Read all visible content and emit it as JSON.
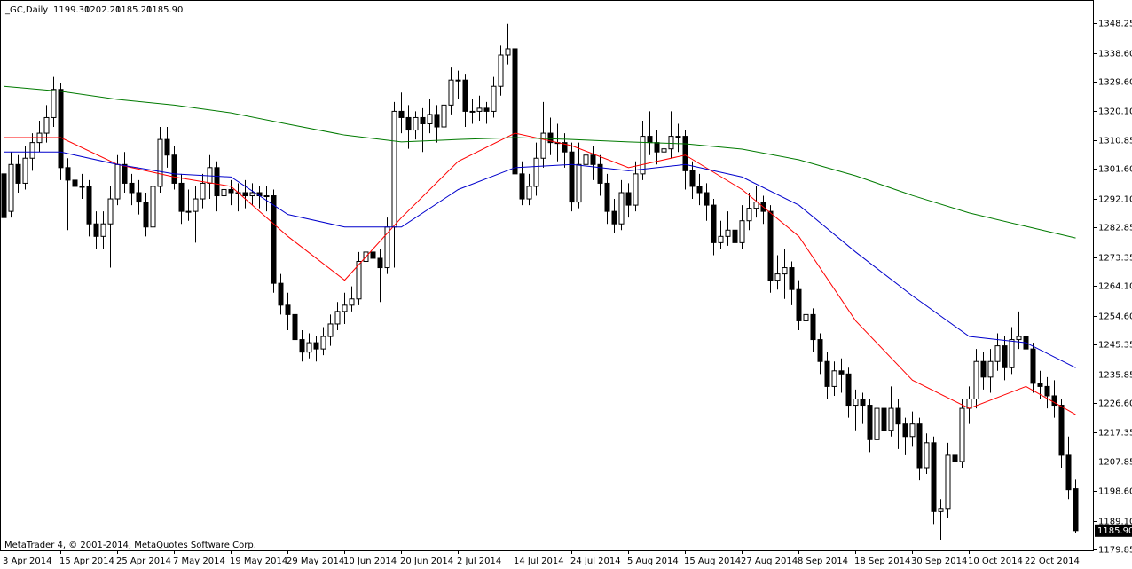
{
  "chart_data": {
    "type": "candlestick",
    "symbol": "_GC,Daily",
    "header_ohlc": [
      "1199.30",
      "1202.20",
      "1185.20",
      "1185.90"
    ],
    "copyright": "MetaTrader 4, © 2001-2014, MetaQuotes Software Corp.",
    "last_price": {
      "value": 1185.9,
      "label": "1185.90"
    },
    "ylim": [
      1179.6,
      1355.6
    ],
    "yticks": [
      {
        "value": 1348.25,
        "label": "1348.25"
      },
      {
        "value": 1338.6,
        "label": "1338.60"
      },
      {
        "value": 1329.6,
        "label": "1329.60"
      },
      {
        "value": 1320.1,
        "label": "1320.10"
      },
      {
        "value": 1310.85,
        "label": "1310.85"
      },
      {
        "value": 1301.6,
        "label": "1301.60"
      },
      {
        "value": 1292.1,
        "label": "1292.10"
      },
      {
        "value": 1282.85,
        "label": "1282.85"
      },
      {
        "value": 1273.35,
        "label": "1273.35"
      },
      {
        "value": 1264.1,
        "label": "1264.10"
      },
      {
        "value": 1254.6,
        "label": "1254.60"
      },
      {
        "value": 1245.35,
        "label": "1245.35"
      },
      {
        "value": 1235.85,
        "label": "1235.85"
      },
      {
        "value": 1226.6,
        "label": "1226.60"
      },
      {
        "value": 1217.35,
        "label": "1217.35"
      },
      {
        "value": 1207.85,
        "label": "1207.85"
      },
      {
        "value": 1198.6,
        "label": "1198.60"
      },
      {
        "value": 1189.1,
        "label": "1189.10"
      },
      {
        "value": 1179.85,
        "label": "1179.85"
      }
    ],
    "categories": [
      "3 Apr 2014",
      null,
      null,
      null,
      null,
      null,
      null,
      null,
      "15 Apr 2014",
      null,
      null,
      null,
      null,
      null,
      null,
      null,
      "25 Apr 2014",
      null,
      null,
      null,
      null,
      null,
      null,
      null,
      "7 May 2014",
      null,
      null,
      null,
      null,
      null,
      null,
      null,
      "19 May 2014",
      null,
      null,
      null,
      null,
      null,
      null,
      null,
      "29 May 2014",
      null,
      null,
      null,
      null,
      null,
      null,
      null,
      "10 Jun 2014",
      null,
      null,
      null,
      null,
      null,
      null,
      null,
      "20 Jun 2014",
      null,
      null,
      null,
      null,
      null,
      null,
      null,
      "2 Jul 2014",
      null,
      null,
      null,
      null,
      null,
      null,
      null,
      "14 Jul 2014",
      null,
      null,
      null,
      null,
      null,
      null,
      null,
      "24 Jul 2014",
      null,
      null,
      null,
      null,
      null,
      null,
      null,
      "5 Aug 2014",
      null,
      null,
      null,
      null,
      null,
      null,
      null,
      "15 Aug 2014",
      null,
      null,
      null,
      null,
      null,
      null,
      null,
      "27 Aug 2014",
      null,
      null,
      null,
      null,
      null,
      null,
      null,
      "8 Sep 2014",
      null,
      null,
      null,
      null,
      null,
      null,
      null,
      "18 Sep 2014",
      null,
      null,
      null,
      null,
      null,
      null,
      null,
      "30 Sep 2014",
      null,
      null,
      null,
      null,
      null,
      null,
      null,
      "10 Oct 2014",
      null,
      null,
      null,
      null,
      null,
      null,
      null,
      "22 Oct 2014",
      null,
      null,
      null,
      null,
      null,
      null,
      null
    ],
    "ohlc": [
      [
        1300,
        1303,
        1282,
        1286
      ],
      [
        1288,
        1307,
        1286,
        1303
      ],
      [
        1303,
        1306,
        1294,
        1297
      ],
      [
        1297,
        1309,
        1295,
        1305
      ],
      [
        1305,
        1313,
        1301,
        1310
      ],
      [
        1310,
        1317,
        1307,
        1313
      ],
      [
        1313,
        1322,
        1310,
        1318
      ],
      [
        1318,
        1331,
        1315,
        1327
      ],
      [
        1327,
        1329,
        1298,
        1302
      ],
      [
        1302,
        1305,
        1282,
        1298
      ],
      [
        1298,
        1300,
        1290,
        1296
      ],
      [
        1296,
        1300,
        1292,
        1296
      ],
      [
        1296,
        1298,
        1280,
        1284
      ],
      [
        1284,
        1288,
        1276,
        1280
      ],
      [
        1280,
        1288,
        1276,
        1284
      ],
      [
        1284,
        1296,
        1270,
        1292
      ],
      [
        1292,
        1306,
        1290,
        1303
      ],
      [
        1303,
        1307,
        1294,
        1297
      ],
      [
        1297,
        1300,
        1290,
        1294
      ],
      [
        1294,
        1298,
        1287,
        1291
      ],
      [
        1291,
        1294,
        1280,
        1283
      ],
      [
        1283,
        1300,
        1271,
        1296
      ],
      [
        1296,
        1315,
        1294,
        1311
      ],
      [
        1311,
        1315,
        1302,
        1306
      ],
      [
        1306,
        1309,
        1295,
        1297
      ],
      [
        1297,
        1300,
        1284,
        1288
      ],
      [
        1288,
        1295,
        1285,
        1288
      ],
      [
        1288,
        1296,
        1278,
        1292
      ],
      [
        1292,
        1300,
        1289,
        1297
      ],
      [
        1297,
        1306,
        1292,
        1302
      ],
      [
        1302,
        1304,
        1288,
        1293
      ],
      [
        1293,
        1300,
        1290,
        1295
      ],
      [
        1295,
        1298,
        1290,
        1294
      ],
      [
        1294,
        1297,
        1288,
        1294
      ],
      [
        1294,
        1298,
        1289,
        1293
      ],
      [
        1293,
        1297,
        1290,
        1294
      ],
      [
        1294,
        1296,
        1289,
        1293
      ],
      [
        1293,
        1296,
        1288,
        1293
      ],
      [
        1293,
        1295,
        1262,
        1265
      ],
      [
        1265,
        1268,
        1255,
        1258
      ],
      [
        1258,
        1262,
        1250,
        1255
      ],
      [
        1255,
        1257,
        1243,
        1247
      ],
      [
        1247,
        1250,
        1240,
        1243
      ],
      [
        1243,
        1249,
        1241,
        1246
      ],
      [
        1246,
        1248,
        1240,
        1244
      ],
      [
        1244,
        1251,
        1242,
        1248
      ],
      [
        1248,
        1255,
        1245,
        1252
      ],
      [
        1252,
        1259,
        1250,
        1256
      ],
      [
        1256,
        1262,
        1252,
        1258
      ],
      [
        1258,
        1264,
        1256,
        1260
      ],
      [
        1260,
        1275,
        1258,
        1272
      ],
      [
        1272,
        1278,
        1268,
        1275
      ],
      [
        1275,
        1277,
        1268,
        1273
      ],
      [
        1273,
        1276,
        1259,
        1270
      ],
      [
        1270,
        1286,
        1268,
        1283
      ],
      [
        1283,
        1323,
        1270,
        1320
      ],
      [
        1320,
        1326,
        1313,
        1318
      ],
      [
        1318,
        1322,
        1308,
        1314
      ],
      [
        1314,
        1320,
        1311,
        1318
      ],
      [
        1318,
        1321,
        1307,
        1316
      ],
      [
        1316,
        1324,
        1313,
        1319
      ],
      [
        1319,
        1322,
        1310,
        1315
      ],
      [
        1315,
        1326,
        1312,
        1322
      ],
      [
        1322,
        1334,
        1319,
        1330
      ],
      [
        1330,
        1333,
        1324,
        1330
      ],
      [
        1330,
        1332,
        1315,
        1320
      ],
      [
        1320,
        1324,
        1316,
        1320
      ],
      [
        1320,
        1325,
        1317,
        1321
      ],
      [
        1321,
        1323,
        1316,
        1320
      ],
      [
        1320,
        1331,
        1318,
        1328
      ],
      [
        1328,
        1341,
        1325,
        1338
      ],
      [
        1338,
        1348,
        1335,
        1340
      ],
      [
        1340,
        1342,
        1295,
        1300
      ],
      [
        1300,
        1304,
        1290,
        1292
      ],
      [
        1292,
        1300,
        1290,
        1296
      ],
      [
        1296,
        1310,
        1293,
        1305
      ],
      [
        1305,
        1323,
        1302,
        1313
      ],
      [
        1313,
        1318,
        1306,
        1310
      ],
      [
        1310,
        1316,
        1304,
        1310
      ],
      [
        1310,
        1313,
        1302,
        1307
      ],
      [
        1307,
        1310,
        1288,
        1291
      ],
      [
        1291,
        1310,
        1289,
        1303
      ],
      [
        1303,
        1312,
        1300,
        1306
      ],
      [
        1306,
        1309,
        1298,
        1303
      ],
      [
        1303,
        1306,
        1293,
        1297
      ],
      [
        1297,
        1300,
        1284,
        1288
      ],
      [
        1288,
        1292,
        1281,
        1284
      ],
      [
        1284,
        1298,
        1282,
        1294
      ],
      [
        1294,
        1297,
        1286,
        1290
      ],
      [
        1290,
        1304,
        1288,
        1300
      ],
      [
        1300,
        1317,
        1298,
        1312
      ],
      [
        1312,
        1320,
        1306,
        1310
      ],
      [
        1310,
        1314,
        1303,
        1307
      ],
      [
        1307,
        1313,
        1304,
        1308
      ],
      [
        1308,
        1320,
        1305,
        1312
      ],
      [
        1312,
        1316,
        1307,
        1312
      ],
      [
        1312,
        1314,
        1295,
        1301
      ],
      [
        1301,
        1304,
        1292,
        1296
      ],
      [
        1296,
        1300,
        1290,
        1294
      ],
      [
        1294,
        1297,
        1285,
        1290
      ],
      [
        1290,
        1292,
        1274,
        1278
      ],
      [
        1278,
        1285,
        1276,
        1280
      ],
      [
        1280,
        1288,
        1277,
        1282
      ],
      [
        1282,
        1284,
        1275,
        1278
      ],
      [
        1278,
        1290,
        1276,
        1285
      ],
      [
        1285,
        1294,
        1282,
        1289
      ],
      [
        1289,
        1296,
        1286,
        1291
      ],
      [
        1291,
        1293,
        1284,
        1288
      ],
      [
        1288,
        1290,
        1262,
        1266
      ],
      [
        1266,
        1274,
        1263,
        1268
      ],
      [
        1268,
        1276,
        1260,
        1270
      ],
      [
        1270,
        1272,
        1258,
        1263
      ],
      [
        1263,
        1266,
        1250,
        1253
      ],
      [
        1253,
        1258,
        1245,
        1255
      ],
      [
        1255,
        1257,
        1243,
        1247
      ],
      [
        1247,
        1249,
        1236,
        1240
      ],
      [
        1240,
        1243,
        1228,
        1232
      ],
      [
        1232,
        1240,
        1229,
        1237
      ],
      [
        1237,
        1241,
        1230,
        1236
      ],
      [
        1236,
        1238,
        1222,
        1226
      ],
      [
        1226,
        1231,
        1218,
        1228
      ],
      [
        1228,
        1230,
        1220,
        1226
      ],
      [
        1226,
        1228,
        1211,
        1215
      ],
      [
        1215,
        1228,
        1213,
        1225
      ],
      [
        1225,
        1227,
        1214,
        1218
      ],
      [
        1218,
        1232,
        1216,
        1225
      ],
      [
        1225,
        1228,
        1212,
        1220
      ],
      [
        1220,
        1222,
        1210,
        1216
      ],
      [
        1216,
        1224,
        1213,
        1220
      ],
      [
        1220,
        1222,
        1202,
        1206
      ],
      [
        1206,
        1217,
        1204,
        1214
      ],
      [
        1214,
        1216,
        1188,
        1192
      ],
      [
        1192,
        1196,
        1183,
        1193
      ],
      [
        1193,
        1214,
        1190,
        1210
      ],
      [
        1210,
        1213,
        1200,
        1208
      ],
      [
        1208,
        1228,
        1206,
        1225
      ],
      [
        1225,
        1232,
        1220,
        1228
      ],
      [
        1228,
        1244,
        1225,
        1240
      ],
      [
        1240,
        1243,
        1231,
        1235
      ],
      [
        1235,
        1244,
        1230,
        1240
      ],
      [
        1240,
        1249,
        1237,
        1245
      ],
      [
        1245,
        1248,
        1234,
        1238
      ],
      [
        1238,
        1251,
        1236,
        1247
      ],
      [
        1247,
        1256,
        1244,
        1248
      ],
      [
        1248,
        1250,
        1240,
        1244
      ],
      [
        1244,
        1246,
        1230,
        1233
      ],
      [
        1233,
        1237,
        1228,
        1232
      ],
      [
        1232,
        1235,
        1225,
        1229
      ],
      [
        1229,
        1234,
        1222,
        1226
      ],
      [
        1226,
        1228,
        1206,
        1210
      ],
      [
        1210,
        1216,
        1196,
        1199
      ],
      [
        1199.3,
        1202.2,
        1185.2,
        1185.9
      ]
    ],
    "line_x": [
      0,
      8,
      16,
      24,
      32,
      40,
      48,
      56,
      64,
      72,
      80,
      88,
      96,
      104,
      112,
      120,
      128,
      136,
      144,
      151
    ],
    "lines": [
      {
        "color": "#ff0000",
        "values": [
          1311.6,
          1311.6,
          1303,
          1299,
          1296,
          1280,
          1266,
          1286,
          1304,
          1313,
          1309,
          1302,
          1306,
          1295,
          1280,
          1253,
          1234,
          1225,
          1232,
          1223
        ]
      },
      {
        "color": "#0000cc",
        "values": [
          1307,
          1307,
          1303,
          1300,
          1299,
          1287,
          1283,
          1283,
          1295,
          1302,
          1303,
          1301,
          1303,
          1299,
          1290,
          1275,
          1261,
          1248,
          1246,
          1238
        ]
      },
      {
        "color": "#007a00",
        "values": [
          1328,
          1326.4,
          1323.8,
          1322,
          1319.5,
          1315.9,
          1312.4,
          1310.2,
          1311,
          1311.6,
          1311,
          1310.2,
          1309.6,
          1307.9,
          1304.5,
          1299.4,
          1293.1,
          1287.5,
          1283.2,
          1279.5
        ]
      }
    ]
  }
}
